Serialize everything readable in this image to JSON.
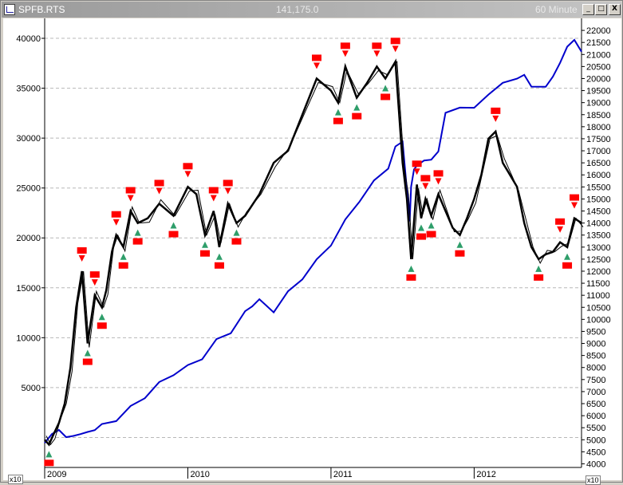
{
  "window": {
    "symbol": "SPFB.RTS",
    "price": "141,175.0",
    "interval": "60 Minute",
    "btn_min": "_",
    "btn_max": "□",
    "btn_close": "X",
    "left_scale_marker": "x10",
    "right_scale_marker": "x10"
  },
  "icons": {
    "app": "chart-window-icon",
    "minimize": "minimize-icon",
    "maximize": "maximize-icon",
    "close": "close-icon",
    "buy_signal": "up-arrow-icon",
    "sell_signal": "down-arrow-icon"
  },
  "colors": {
    "equity": "#0000cc",
    "price": "#000000",
    "sell": "#ff0000",
    "buy": "#2e9e6a",
    "grid": "#b8b8b8"
  },
  "chart_data": {
    "type": "line",
    "x_axis": {
      "ticks": [
        "2009",
        "2010",
        "2011",
        "2012"
      ],
      "range": [
        2009.0,
        2012.75
      ]
    },
    "left_axis": {
      "ticks": [
        5000,
        10000,
        15000,
        20000,
        25000,
        30000,
        35000,
        40000
      ],
      "range": [
        -3000,
        42000
      ],
      "grid": true
    },
    "right_axis": {
      "ticks": [
        4000,
        4500,
        5000,
        5500,
        6000,
        6500,
        7000,
        7500,
        8000,
        8500,
        9000,
        9500,
        10000,
        10500,
        11000,
        11500,
        12000,
        12500,
        13000,
        13500,
        14000,
        14500,
        15000,
        15500,
        16000,
        16500,
        17000,
        17500,
        18000,
        18500,
        19000,
        19500,
        20000,
        20500,
        21000,
        21500,
        22000
      ],
      "range": [
        3850,
        22500
      ]
    },
    "series": [
      {
        "role": "equity",
        "axis": "left",
        "x": [
          2009.0,
          2009.05,
          2009.1,
          2009.15,
          2009.2,
          2009.25,
          2009.3,
          2009.35,
          2009.4,
          2009.5,
          2009.6,
          2009.7,
          2009.8,
          2009.9,
          2010.0,
          2010.1,
          2010.2,
          2010.3,
          2010.4,
          2010.45,
          2010.5,
          2010.6,
          2010.7,
          2010.8,
          2010.9,
          2011.0,
          2011.1,
          2011.2,
          2011.3,
          2011.4,
          2011.45,
          2011.5,
          2011.55,
          2011.56,
          2011.58,
          2011.6,
          2011.65,
          2011.7,
          2011.75,
          2011.8,
          2011.9,
          2012.0,
          2012.1,
          2012.2,
          2012.3,
          2012.35,
          2012.4,
          2012.5,
          2012.55,
          2012.6,
          2012.65,
          2012.7,
          2012.75
        ],
        "y": [
          -700,
          500,
          600,
          200,
          0,
          500,
          400,
          900,
          1200,
          1800,
          3000,
          4100,
          5400,
          6400,
          7100,
          8000,
          9700,
          10600,
          12500,
          13300,
          13700,
          12700,
          14500,
          16000,
          17700,
          19400,
          21700,
          23800,
          25600,
          27100,
          29000,
          29800,
          21500,
          25300,
          26700,
          27400,
          27600,
          28000,
          28500,
          32700,
          32900,
          33200,
          34200,
          35700,
          35800,
          36500,
          35000,
          35300,
          36000,
          37700,
          39000,
          40000,
          38500
        ]
      },
      {
        "role": "price",
        "axis": "right",
        "x": [
          2009.0,
          2009.03,
          2009.06,
          2009.1,
          2009.14,
          2009.18,
          2009.22,
          2009.26,
          2009.3,
          2009.35,
          2009.4,
          2009.43,
          2009.47,
          2009.5,
          2009.55,
          2009.6,
          2009.65,
          2009.72,
          2009.8,
          2009.9,
          2010.0,
          2010.06,
          2010.12,
          2010.18,
          2010.22,
          2010.28,
          2010.34,
          2010.4,
          2010.5,
          2010.6,
          2010.7,
          2010.8,
          2010.9,
          2011.0,
          2011.05,
          2011.1,
          2011.18,
          2011.25,
          2011.32,
          2011.38,
          2011.45,
          2011.5,
          2011.53,
          2011.56,
          2011.6,
          2011.63,
          2011.66,
          2011.7,
          2011.75,
          2011.8,
          2011.85,
          2011.9,
          2011.95,
          2012.0,
          2012.05,
          2012.1,
          2012.15,
          2012.2,
          2012.25,
          2012.3,
          2012.35,
          2012.4,
          2012.45,
          2012.5,
          2012.55,
          2012.6,
          2012.65,
          2012.7,
          2012.75
        ],
        "y": [
          5000,
          4800,
          5200,
          5700,
          6500,
          8000,
          10500,
          12000,
          9000,
          11000,
          10500,
          11200,
          12800,
          13500,
          13000,
          14500,
          14000,
          14200,
          14800,
          14300,
          15500,
          15200,
          13500,
          14500,
          13000,
          14800,
          14000,
          14300,
          15200,
          16500,
          17000,
          18500,
          20000,
          19500,
          19000,
          20500,
          19200,
          19800,
          20500,
          20000,
          20700,
          16500,
          15000,
          12500,
          15600,
          14200,
          15000,
          14300,
          15200,
          14500,
          13800,
          13500,
          14200,
          15000,
          16000,
          17500,
          17800,
          16500,
          16000,
          15500,
          14000,
          13000,
          12500,
          12700,
          12800,
          13200,
          13000,
          14200,
          14000
        ]
      }
    ]
  }
}
